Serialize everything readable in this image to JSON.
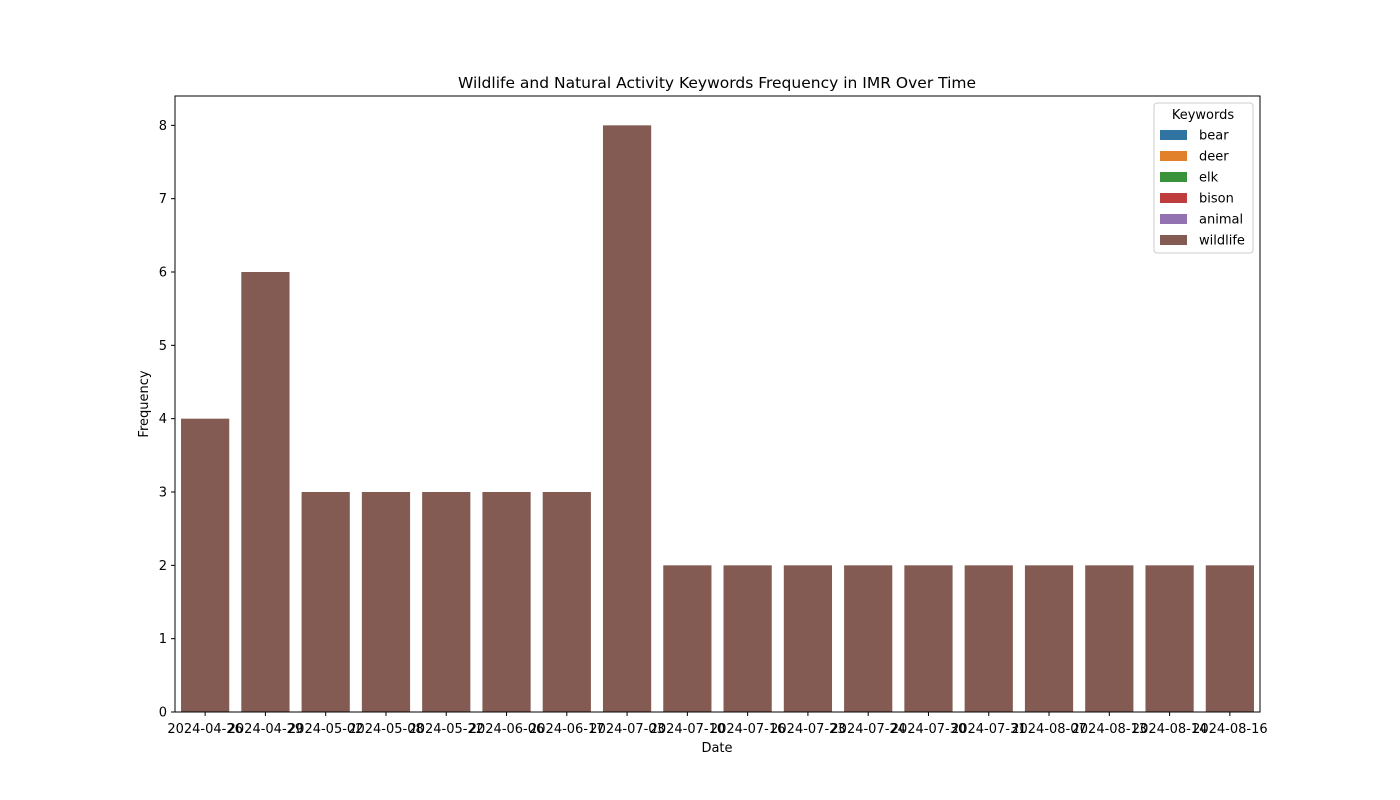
{
  "chart_data": {
    "type": "bar",
    "title": "Wildlife and Natural Activity Keywords Frequency in IMR Over Time",
    "xlabel": "Date",
    "ylabel": "Frequency",
    "ylim": [
      0,
      8.4
    ],
    "yticks": [
      0,
      1,
      2,
      3,
      4,
      5,
      6,
      7,
      8
    ],
    "grid": false,
    "legend_title": "Keywords",
    "legend_placement": "top-right",
    "categories": [
      "2024-04-26",
      "2024-04-29",
      "2024-05-02",
      "2024-05-08",
      "2024-05-22",
      "2024-06-06",
      "2024-06-17",
      "2024-07-03",
      "2024-07-10",
      "2024-07-16",
      "2024-07-23",
      "2024-07-24",
      "2024-07-30",
      "2024-07-31",
      "2024-08-07",
      "2024-08-13",
      "2024-08-14",
      "2024-08-16"
    ],
    "series": [
      {
        "name": "bear",
        "color": "#3274a1",
        "values": [
          0,
          0,
          0,
          0,
          0,
          0,
          0,
          0,
          0,
          0,
          0,
          0,
          0,
          0,
          0,
          0,
          0,
          0
        ]
      },
      {
        "name": "deer",
        "color": "#e1812c",
        "values": [
          0,
          0,
          0,
          0,
          0,
          0,
          0,
          0,
          0,
          0,
          0,
          0,
          0,
          0,
          0,
          0,
          0,
          0
        ]
      },
      {
        "name": "elk",
        "color": "#3a923a",
        "values": [
          0,
          0,
          0,
          0,
          0,
          0,
          0,
          0,
          0,
          0,
          0,
          0,
          0,
          0,
          0,
          0,
          0,
          0
        ]
      },
      {
        "name": "bison",
        "color": "#c03d3e",
        "values": [
          0,
          0,
          0,
          0,
          0,
          0,
          0,
          0,
          0,
          0,
          0,
          0,
          0,
          0,
          0,
          0,
          0,
          0
        ]
      },
      {
        "name": "animal",
        "color": "#9372b2",
        "values": [
          0,
          0,
          0,
          0,
          0,
          0,
          0,
          0,
          0,
          0,
          0,
          0,
          0,
          0,
          0,
          0,
          0,
          0
        ]
      },
      {
        "name": "wildlife",
        "color": "#845b53",
        "values": [
          4,
          6,
          3,
          3,
          3,
          3,
          3,
          8,
          2,
          2,
          2,
          2,
          2,
          2,
          2,
          2,
          2,
          2
        ]
      }
    ]
  }
}
